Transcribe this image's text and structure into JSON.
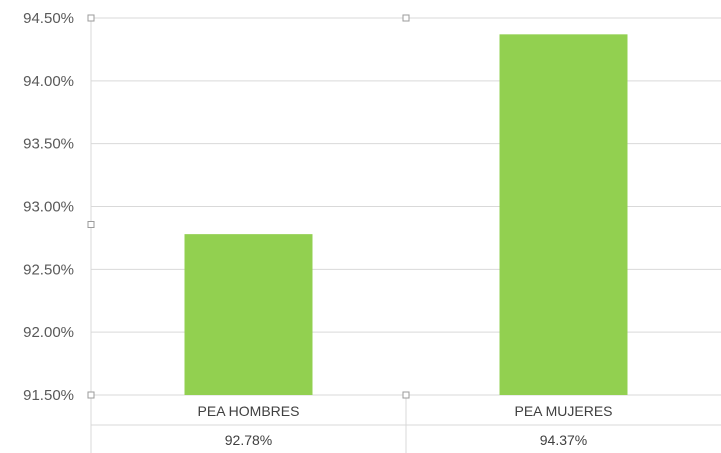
{
  "chart_data": {
    "type": "bar",
    "categories": [
      "PEA HOMBRES",
      "PEA MUJERES"
    ],
    "values": [
      92.78,
      94.37
    ],
    "value_labels": [
      "92.78%",
      "94.37%"
    ],
    "title": "",
    "xlabel": "",
    "ylabel": "",
    "ylim": [
      91.5,
      94.5
    ],
    "yticks": [
      91.5,
      92.0,
      92.5,
      93.0,
      93.5,
      94.0,
      94.5
    ],
    "ytick_labels": [
      "91.50%",
      "92.00%",
      "92.50%",
      "93.00%",
      "93.50%",
      "94.00%",
      "94.50%"
    ],
    "grid": true,
    "legend": "none",
    "data_table": true,
    "bar_color": "#92d050",
    "grid_color": "#d9d9d9"
  }
}
